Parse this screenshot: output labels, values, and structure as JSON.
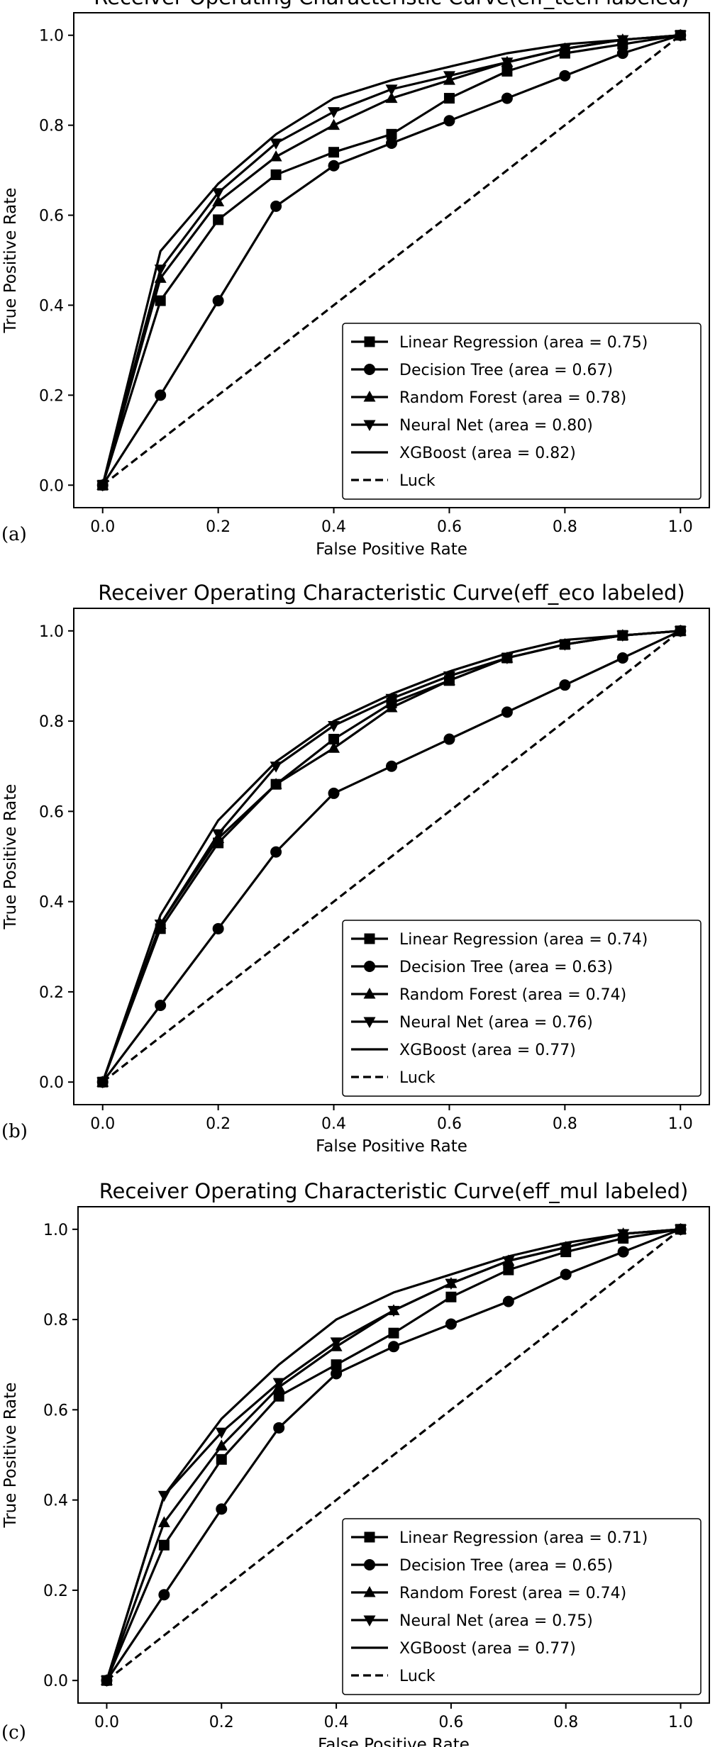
{
  "chart_data": [
    {
      "panel_label": "(a)",
      "type": "line",
      "title": "Receiver Operating Characteristic Curve(eff_tech labeled)",
      "xlabel": "False Positive Rate",
      "ylabel": "True Positive Rate",
      "xlim": [
        0,
        1
      ],
      "ylim": [
        0,
        1
      ],
      "xticks": [
        "0.0",
        "0.2",
        "0.4",
        "0.6",
        "0.8",
        "1.0"
      ],
      "yticks": [
        "0.0",
        "0.2",
        "0.4",
        "0.6",
        "0.8",
        "1.0"
      ],
      "grid": false,
      "legend_position": "lower-right",
      "series": [
        {
          "name": "Linear Regression (area = 0.75)",
          "marker": "square",
          "style": "solid",
          "x": [
            0,
            0.1,
            0.2,
            0.3,
            0.4,
            0.5,
            0.6,
            0.7,
            0.8,
            0.9,
            1.0
          ],
          "y": [
            0,
            0.41,
            0.59,
            0.69,
            0.74,
            0.78,
            0.86,
            0.92,
            0.96,
            0.98,
            1.0
          ]
        },
        {
          "name": "Decision Tree (area = 0.67)",
          "marker": "circle",
          "style": "solid",
          "x": [
            0,
            0.1,
            0.2,
            0.3,
            0.4,
            0.5,
            0.6,
            0.7,
            0.8,
            0.9,
            1.0
          ],
          "y": [
            0,
            0.2,
            0.41,
            0.62,
            0.71,
            0.76,
            0.81,
            0.86,
            0.91,
            0.96,
            1.0
          ]
        },
        {
          "name": "Random Forest (area = 0.78)",
          "marker": "triangle-up",
          "style": "solid",
          "x": [
            0,
            0.1,
            0.2,
            0.3,
            0.4,
            0.5,
            0.6,
            0.7,
            0.8,
            0.9,
            1.0
          ],
          "y": [
            0,
            0.46,
            0.63,
            0.73,
            0.8,
            0.86,
            0.9,
            0.94,
            0.97,
            0.99,
            1.0
          ]
        },
        {
          "name": "Neural Net (area = 0.80)",
          "marker": "triangle-down",
          "style": "solid",
          "x": [
            0,
            0.1,
            0.2,
            0.3,
            0.4,
            0.5,
            0.6,
            0.7,
            0.8,
            0.9,
            1.0
          ],
          "y": [
            0,
            0.48,
            0.65,
            0.76,
            0.83,
            0.88,
            0.91,
            0.94,
            0.97,
            0.99,
            1.0
          ]
        },
        {
          "name": "XGBoost (area = 0.82)",
          "marker": "none",
          "style": "solid",
          "x": [
            0,
            0.1,
            0.2,
            0.3,
            0.4,
            0.5,
            0.6,
            0.7,
            0.8,
            0.9,
            1.0
          ],
          "y": [
            0,
            0.52,
            0.67,
            0.78,
            0.86,
            0.9,
            0.93,
            0.96,
            0.98,
            0.99,
            1.0
          ]
        },
        {
          "name": "Luck",
          "marker": "none",
          "style": "dashed",
          "x": [
            0,
            1
          ],
          "y": [
            0,
            1
          ]
        }
      ]
    },
    {
      "panel_label": "(b)",
      "type": "line",
      "title": "Receiver Operating Characteristic Curve(eff_eco labeled)",
      "xlabel": "False Positive Rate",
      "ylabel": "True Positive Rate",
      "xlim": [
        0,
        1
      ],
      "ylim": [
        0,
        1
      ],
      "xticks": [
        "0.0",
        "0.2",
        "0.4",
        "0.6",
        "0.8",
        "1.0"
      ],
      "yticks": [
        "0.0",
        "0.2",
        "0.4",
        "0.6",
        "0.8",
        "1.0"
      ],
      "grid": false,
      "legend_position": "lower-right",
      "series": [
        {
          "name": "Linear Regression (area = 0.74)",
          "marker": "square",
          "style": "solid",
          "x": [
            0,
            0.1,
            0.2,
            0.3,
            0.4,
            0.5,
            0.6,
            0.7,
            0.8,
            0.9,
            1.0
          ],
          "y": [
            0,
            0.34,
            0.53,
            0.66,
            0.76,
            0.84,
            0.89,
            0.94,
            0.97,
            0.99,
            1.0
          ]
        },
        {
          "name": "Decision Tree (area = 0.63)",
          "marker": "circle",
          "style": "solid",
          "x": [
            0,
            0.1,
            0.2,
            0.3,
            0.4,
            0.5,
            0.6,
            0.7,
            0.8,
            0.9,
            1.0
          ],
          "y": [
            0,
            0.17,
            0.34,
            0.51,
            0.64,
            0.7,
            0.76,
            0.82,
            0.88,
            0.94,
            1.0
          ]
        },
        {
          "name": "Random Forest (area = 0.74)",
          "marker": "triangle-up",
          "style": "solid",
          "x": [
            0,
            0.1,
            0.2,
            0.3,
            0.4,
            0.5,
            0.6,
            0.7,
            0.8,
            0.9,
            1.0
          ],
          "y": [
            0,
            0.35,
            0.54,
            0.66,
            0.74,
            0.83,
            0.89,
            0.94,
            0.97,
            0.99,
            1.0
          ]
        },
        {
          "name": "Neural Net (area = 0.76)",
          "marker": "triangle-down",
          "style": "solid",
          "x": [
            0,
            0.1,
            0.2,
            0.3,
            0.4,
            0.5,
            0.6,
            0.7,
            0.8,
            0.9,
            1.0
          ],
          "y": [
            0,
            0.35,
            0.55,
            0.7,
            0.79,
            0.85,
            0.9,
            0.94,
            0.97,
            0.99,
            1.0
          ]
        },
        {
          "name": "XGBoost (area = 0.77)",
          "marker": "none",
          "style": "solid",
          "x": [
            0,
            0.1,
            0.2,
            0.3,
            0.4,
            0.5,
            0.6,
            0.7,
            0.8,
            0.9,
            1.0
          ],
          "y": [
            0,
            0.37,
            0.58,
            0.71,
            0.8,
            0.86,
            0.91,
            0.95,
            0.98,
            0.99,
            1.0
          ]
        },
        {
          "name": "Luck",
          "marker": "none",
          "style": "dashed",
          "x": [
            0,
            1
          ],
          "y": [
            0,
            1
          ]
        }
      ]
    },
    {
      "panel_label": "(c)",
      "type": "line",
      "title": "Receiver Operating Characteristic Curve(eff_mul labeled)",
      "xlabel": "False Positive Rate",
      "ylabel": "True Positive Rate",
      "xlim": [
        0,
        1
      ],
      "ylim": [
        0,
        1
      ],
      "xticks": [
        "0.0",
        "0.2",
        "0.4",
        "0.6",
        "0.8",
        "1.0"
      ],
      "yticks": [
        "0.0",
        "0.2",
        "0.4",
        "0.6",
        "0.8",
        "1.0"
      ],
      "grid": false,
      "legend_position": "lower-right",
      "series": [
        {
          "name": "Linear Regression (area = 0.71)",
          "marker": "square",
          "style": "solid",
          "x": [
            0,
            0.1,
            0.2,
            0.3,
            0.4,
            0.5,
            0.6,
            0.7,
            0.8,
            0.9,
            1.0
          ],
          "y": [
            0,
            0.3,
            0.49,
            0.63,
            0.7,
            0.77,
            0.85,
            0.91,
            0.95,
            0.98,
            1.0
          ]
        },
        {
          "name": "Decision Tree (area = 0.65)",
          "marker": "circle",
          "style": "solid",
          "x": [
            0,
            0.1,
            0.2,
            0.3,
            0.4,
            0.5,
            0.6,
            0.7,
            0.8,
            0.9,
            1.0
          ],
          "y": [
            0,
            0.19,
            0.38,
            0.56,
            0.68,
            0.74,
            0.79,
            0.84,
            0.9,
            0.95,
            1.0
          ]
        },
        {
          "name": "Random Forest (area = 0.74)",
          "marker": "triangle-up",
          "style": "solid",
          "x": [
            0,
            0.1,
            0.2,
            0.3,
            0.4,
            0.5,
            0.6,
            0.7,
            0.8,
            0.9,
            1.0
          ],
          "y": [
            0,
            0.35,
            0.52,
            0.65,
            0.74,
            0.82,
            0.88,
            0.93,
            0.96,
            0.99,
            1.0
          ]
        },
        {
          "name": "Neural Net (area = 0.75)",
          "marker": "triangle-down",
          "style": "solid",
          "x": [
            0,
            0.1,
            0.2,
            0.3,
            0.4,
            0.5,
            0.6,
            0.7,
            0.8,
            0.9,
            1.0
          ],
          "y": [
            0,
            0.41,
            0.55,
            0.66,
            0.75,
            0.82,
            0.88,
            0.93,
            0.96,
            0.99,
            1.0
          ]
        },
        {
          "name": "XGBoost (area = 0.77)",
          "marker": "none",
          "style": "solid",
          "x": [
            0,
            0.1,
            0.2,
            0.3,
            0.4,
            0.5,
            0.6,
            0.7,
            0.8,
            0.9,
            1.0
          ],
          "y": [
            0,
            0.41,
            0.58,
            0.7,
            0.8,
            0.86,
            0.9,
            0.94,
            0.97,
            0.99,
            1.0
          ]
        },
        {
          "name": "Luck",
          "marker": "none",
          "style": "dashed",
          "x": [
            0,
            1
          ],
          "y": [
            0,
            1
          ]
        }
      ]
    }
  ]
}
